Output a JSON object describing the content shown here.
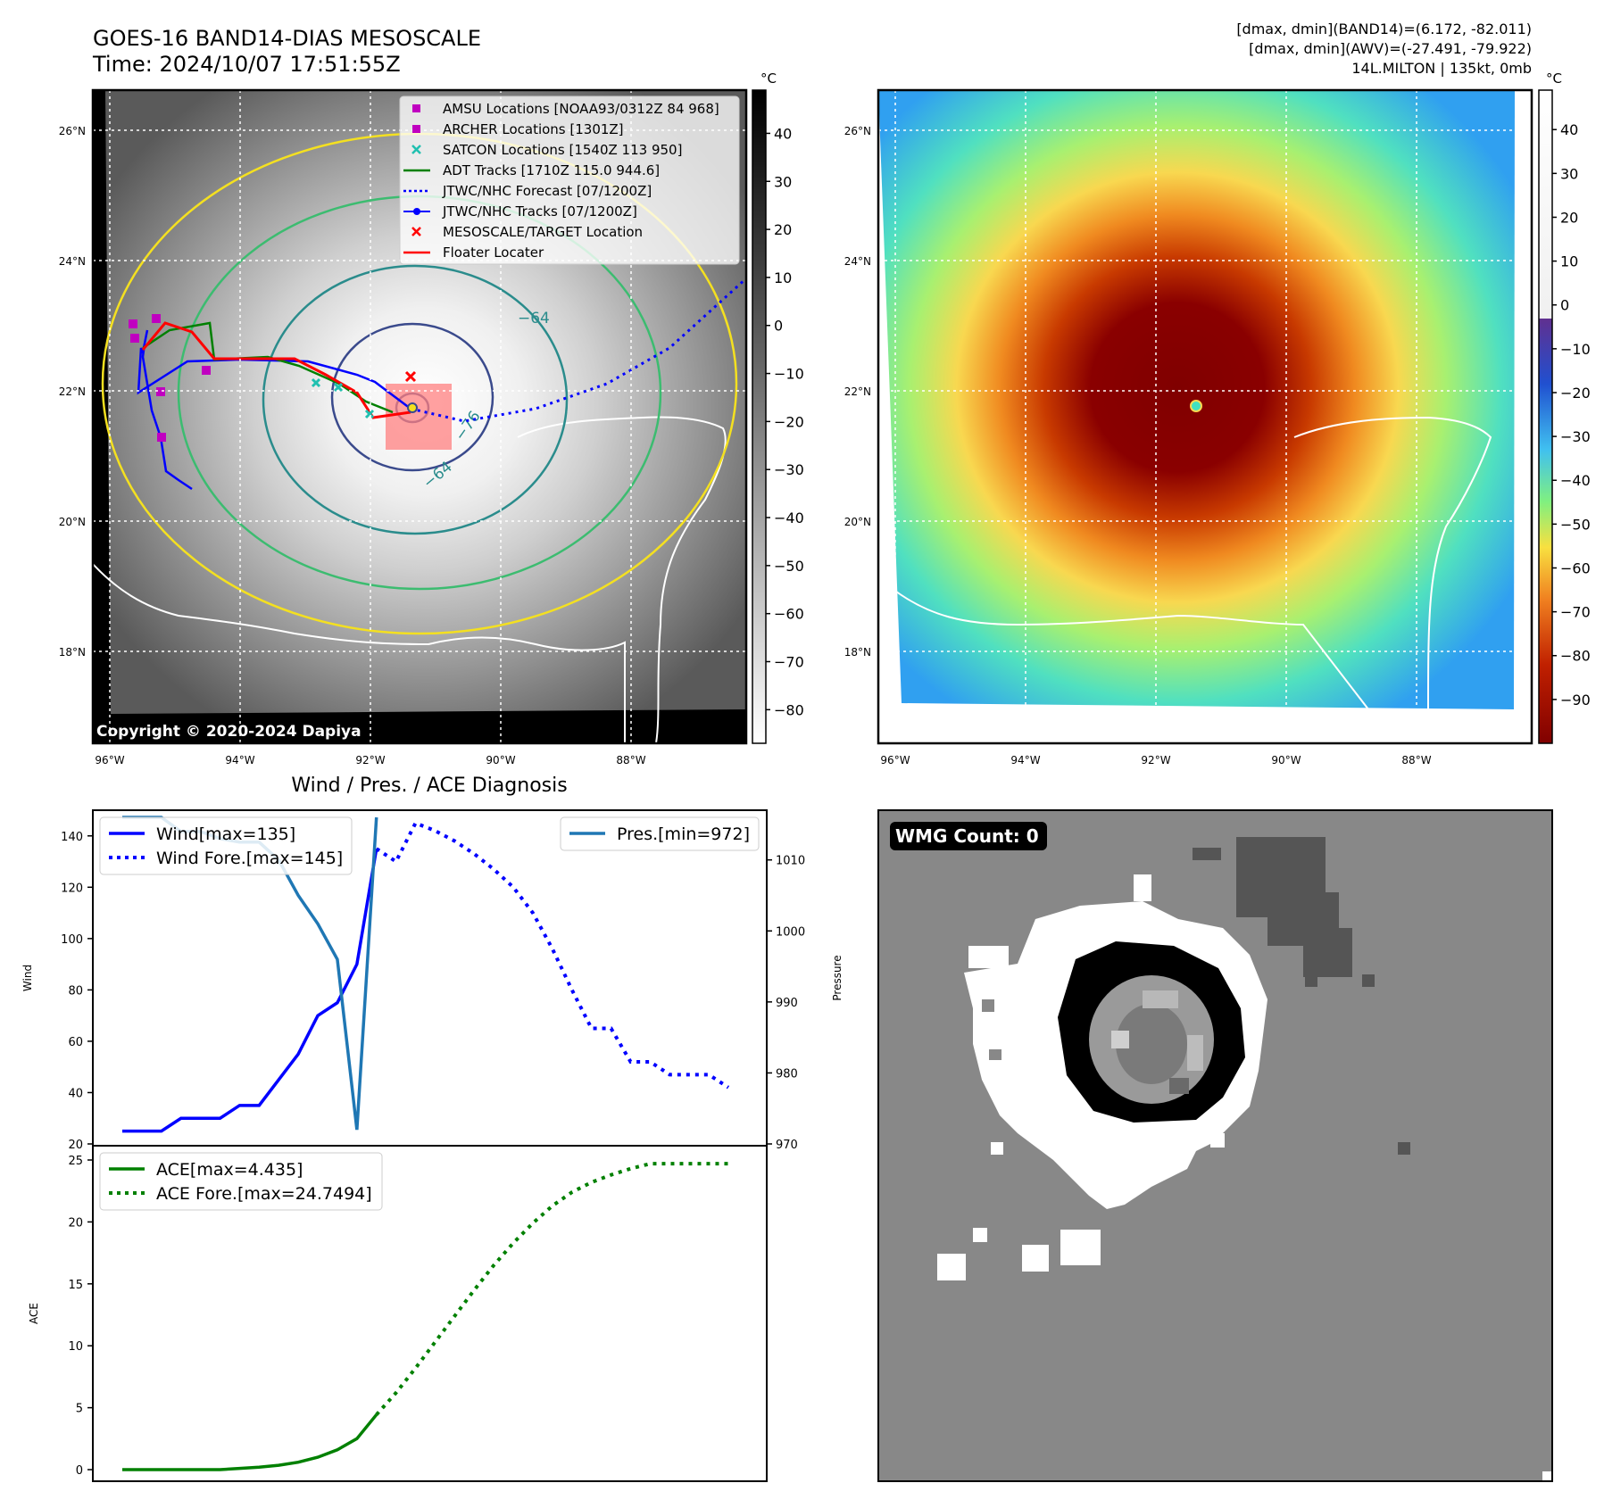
{
  "header": {
    "title_line1": "GOES-16 BAND14-DIAS MESOSCALE",
    "title_line2": "Time: 2024/10/07 17:51:55Z",
    "info_line1": "[dmax, dmin](BAND14)=(6.172, -82.011)",
    "info_line2": "[dmax, dmin](AWV)=(-27.491, -79.922)",
    "info_line3": "14L.MILTON | 135kt, 0mb"
  },
  "map_axes": {
    "lat_labels": [
      "26°N",
      "24°N",
      "22°N",
      "20°N",
      "18°N"
    ],
    "lon_labels": [
      "96°W",
      "94°W",
      "92°W",
      "90°W",
      "88°W"
    ],
    "copyright": "Copyright © 2020-2024 Dapiya",
    "contour_labels": [
      "−64",
      "−76",
      "−64"
    ],
    "colors": {
      "coast": "#ffffff",
      "contour_yellow": "#f4e020",
      "contour_green": "#3cbc70",
      "contour_teal": "#2a8c8c",
      "contour_navy": "#3a4a8c"
    }
  },
  "map_legend": {
    "items": [
      {
        "label": "AMSU Locations [NOAA93/0312Z 84 968]",
        "icon": "magenta-square",
        "color": "#c000c0"
      },
      {
        "label": "ARCHER Locations [1301Z]",
        "icon": "magenta-square",
        "color": "#c000c0"
      },
      {
        "label": "SATCON Locations [1540Z 113 950]",
        "icon": "teal-x",
        "color": "#20c0b0"
      },
      {
        "label": "ADT Tracks [1710Z 115.0 944.6]",
        "icon": "green-line",
        "color": "#008000"
      },
      {
        "label": "JTWC/NHC Forecast [07/1200Z]",
        "icon": "blue-dotted-line",
        "color": "#0000ff"
      },
      {
        "label": "JTWC/NHC Tracks [07/1200Z]",
        "icon": "blue-line-dot",
        "color": "#0000ff"
      },
      {
        "label": "MESOSCALE/TARGET Location",
        "icon": "red-x",
        "color": "#ff0000"
      },
      {
        "label": "Floater Locater",
        "icon": "red-line",
        "color": "#ff0000"
      }
    ]
  },
  "colorbar_gray": {
    "unit": "°C",
    "ticks": [
      "40",
      "30",
      "20",
      "10",
      "0",
      "−10",
      "−20",
      "−30",
      "−40",
      "−50",
      "−60",
      "−70",
      "−80"
    ]
  },
  "colorbar_color": {
    "unit": "°C",
    "ticks": [
      "40",
      "30",
      "20",
      "10",
      "0",
      "−10",
      "−20",
      "−30",
      "−40",
      "−50",
      "−60",
      "−70",
      "−80",
      "−90"
    ]
  },
  "chart_data": [
    {
      "type": "line",
      "title": "Wind / Pres. / ACE Diagnosis",
      "ylabel": "Wind",
      "ylabel_right": "Pressure",
      "ylim": [
        20,
        150
      ],
      "ylim_right": [
        970,
        1017
      ],
      "yticks": [
        "140",
        "120",
        "100",
        "80",
        "60",
        "40",
        "20"
      ],
      "yticks_right": [
        "1010",
        "1000",
        "990",
        "980",
        "970"
      ],
      "series": [
        {
          "name": "Wind[max=135]",
          "style": "solid",
          "color": "#0000ff",
          "axis": "left",
          "x": [
            0,
            1,
            2,
            3,
            4,
            5,
            6,
            7,
            8,
            9,
            10,
            11,
            12,
            13
          ],
          "values": [
            25,
            25,
            25,
            30,
            30,
            30,
            35,
            35,
            45,
            55,
            70,
            75,
            90,
            135
          ]
        },
        {
          "name": "Wind Fore.[max=145]",
          "style": "dotted",
          "color": "#0000ff",
          "axis": "left",
          "x": [
            13,
            14,
            15,
            16,
            17,
            18,
            19,
            20,
            21,
            22,
            23,
            24,
            25,
            26,
            27,
            28,
            29,
            30,
            31
          ],
          "values": [
            135,
            130,
            145,
            142,
            138,
            133,
            127,
            120,
            110,
            96,
            80,
            65,
            65,
            52,
            52,
            47,
            47,
            47,
            42
          ]
        },
        {
          "name": "Pres.[min=972]",
          "style": "solid",
          "color": "#1f77b4",
          "axis": "right",
          "x": [
            0,
            1,
            2,
            3,
            4,
            5,
            6,
            7,
            8,
            9,
            10,
            11,
            12,
            13
          ],
          "values": [
            1016,
            1016,
            1016,
            1014,
            1014,
            1013,
            1012.5,
            1012.5,
            1010,
            1005,
            1001,
            996,
            972,
            1016
          ]
        }
      ]
    },
    {
      "type": "line",
      "ylabel": "ACE",
      "ylim": [
        0,
        25
      ],
      "yticks": [
        "25",
        "20",
        "15",
        "10",
        "5",
        "0"
      ],
      "series": [
        {
          "name": "ACE[max=4.435]",
          "style": "solid",
          "color": "#008000",
          "x": [
            0,
            1,
            2,
            3,
            4,
            5,
            6,
            7,
            8,
            9,
            10,
            11,
            12,
            13
          ],
          "values": [
            0,
            0,
            0,
            0,
            0,
            0,
            0.1,
            0.2,
            0.35,
            0.6,
            1.0,
            1.6,
            2.5,
            4.435
          ]
        },
        {
          "name": "ACE Fore.[max=24.7494]",
          "style": "dotted",
          "color": "#008000",
          "x": [
            13,
            14,
            15,
            16,
            17,
            18,
            19,
            20,
            21,
            22,
            23,
            24,
            25,
            26,
            27,
            28,
            29,
            30,
            31
          ],
          "values": [
            4.435,
            6.2,
            8.2,
            10.3,
            12.4,
            14.5,
            16.5,
            18.3,
            19.9,
            21.3,
            22.4,
            23.2,
            23.8,
            24.3,
            24.7,
            24.7,
            24.7,
            24.7,
            24.7
          ]
        }
      ]
    }
  ],
  "wmg_panel": {
    "label": "WMG Count: 0"
  }
}
